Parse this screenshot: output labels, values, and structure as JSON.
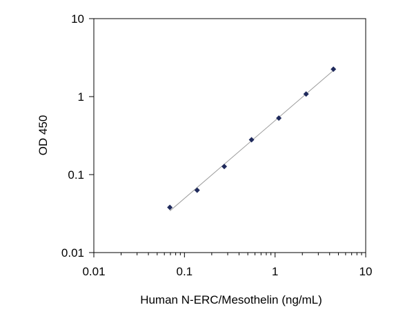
{
  "chart_data": {
    "type": "scatter",
    "title": "",
    "xlabel": "Human N-ERC/Mesothelin  (ng/mL)",
    "ylabel": "OD 450",
    "xscale": "log",
    "yscale": "log",
    "xlim": [
      0.01,
      10
    ],
    "ylim": [
      0.01,
      10
    ],
    "x_ticks": [
      "0.01",
      "0.1",
      "1",
      "10"
    ],
    "y_ticks": [
      "0.01",
      "0.1",
      "1",
      "10"
    ],
    "grid": false,
    "legend": "none",
    "trendline": true,
    "series": [
      {
        "x": [
          0.069,
          0.138,
          0.275,
          0.55,
          1.1,
          2.2,
          4.4
        ],
        "y": [
          0.038,
          0.063,
          0.127,
          0.28,
          0.53,
          1.08,
          2.25
        ]
      }
    ],
    "colors": {
      "marker": "#1f2a5c",
      "trendline": "#9a9a9a",
      "axis": "#000000",
      "frame": "#000000"
    }
  }
}
